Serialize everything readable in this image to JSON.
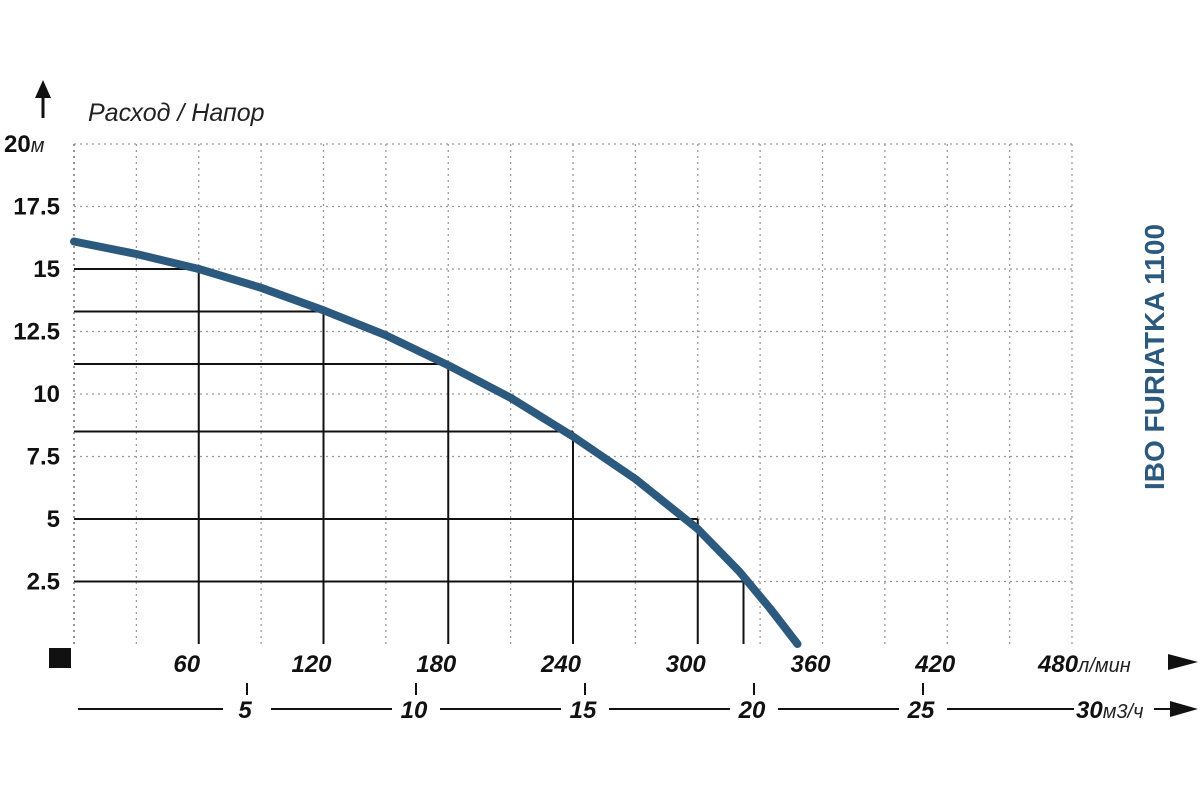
{
  "chart_data": {
    "type": "line",
    "title": "",
    "ylabel": "Расход / Напор",
    "product_label": "IBO FURIATKA 1100",
    "ylim": [
      0,
      20
    ],
    "yticks": [
      {
        "value": 2.5,
        "label": "2.5"
      },
      {
        "value": 5,
        "label": "5"
      },
      {
        "value": 7.5,
        "label": "7.5"
      },
      {
        "value": 10,
        "label": "10"
      },
      {
        "value": 12.5,
        "label": "12.5"
      },
      {
        "value": 15,
        "label": "15"
      },
      {
        "value": 17.5,
        "label": "17.5"
      },
      {
        "value": 20,
        "label": "20",
        "unit": "м"
      }
    ],
    "xlim": [
      0,
      480
    ],
    "xticks": [
      {
        "value": 60,
        "label": "60"
      },
      {
        "value": 120,
        "label": "120"
      },
      {
        "value": 180,
        "label": "180"
      },
      {
        "value": 240,
        "label": "240"
      },
      {
        "value": 300,
        "label": "300"
      },
      {
        "value": 360,
        "label": "360"
      },
      {
        "value": 420,
        "label": "420"
      },
      {
        "value": 480,
        "label": "480",
        "unit": "л/мин"
      }
    ],
    "x2ticks": [
      {
        "value": 5,
        "label": "5"
      },
      {
        "value": 10,
        "label": "10"
      },
      {
        "value": 15,
        "label": "15"
      },
      {
        "value": 20,
        "label": "20"
      },
      {
        "value": 25,
        "label": "25"
      },
      {
        "value": 30,
        "label": "30",
        "unit": "м3/ч"
      }
    ],
    "x2lim": [
      0,
      30
    ],
    "grid": true,
    "series": [
      {
        "color": "#2c5a7e",
        "x": [
          0,
          30,
          60,
          90,
          120,
          150,
          180,
          210,
          240,
          270,
          300,
          320,
          335,
          348
        ],
        "y": [
          16.1,
          15.6,
          15.0,
          14.25,
          13.35,
          12.35,
          11.15,
          9.85,
          8.3,
          6.6,
          4.6,
          2.9,
          1.4,
          0
        ]
      }
    ],
    "reference_points": [
      {
        "x": 60,
        "y": 15
      },
      {
        "x": 120,
        "y": 13.3
      },
      {
        "x": 180,
        "y": 11.2
      },
      {
        "x": 240,
        "y": 8.5
      },
      {
        "x": 300,
        "y": 5
      },
      {
        "x": 322,
        "y": 2.5
      }
    ]
  }
}
